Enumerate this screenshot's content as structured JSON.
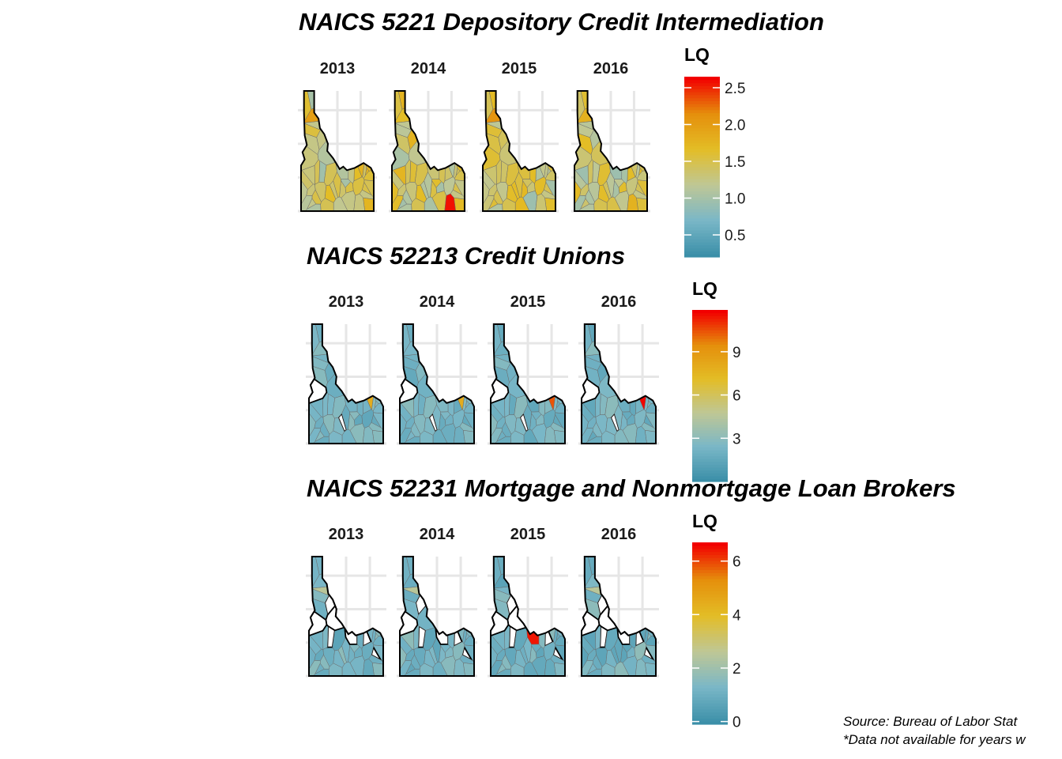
{
  "palette": {
    "stops": [
      "#3b8fa8",
      "#7ab7c7",
      "#bfc795",
      "#e3bd26",
      "#e58f0c",
      "#f20000"
    ],
    "state_outline": "#000000",
    "county_border": "#6b6b6b",
    "grid": "#e6e6e6",
    "no_data": "#ffffff"
  },
  "chart_data": [
    {
      "type": "heatmap",
      "subtype": "choropleth-map-small-multiples",
      "title": "NAICS 5221 Depository Credit Intermediation",
      "region": "Idaho counties",
      "panels": [
        "2013",
        "2014",
        "2015",
        "2016"
      ],
      "legend": {
        "title": "LQ",
        "ticks": [
          "0.5",
          "1.0",
          "1.5",
          "2.0",
          "2.5"
        ],
        "tick_values": [
          0.5,
          1.0,
          1.5,
          2.0,
          2.5
        ],
        "range": [
          0.2,
          2.65
        ],
        "placement": "right"
      },
      "panel_summary": [
        {
          "year": "2013",
          "max_lq": 2.0,
          "highlight": "north Idaho panhandle county ~2.0"
        },
        {
          "year": "2014",
          "max_lq": 2.6,
          "highlight": "southeast county ~2.6"
        },
        {
          "year": "2015",
          "max_lq": 2.1,
          "highlight": "north Idaho panhandle county ~2.1"
        },
        {
          "year": "2016",
          "max_lq": 1.8,
          "highlight": "statewide mostly 1.0-1.8"
        }
      ],
      "grid": true
    },
    {
      "type": "heatmap",
      "subtype": "choropleth-map-small-multiples",
      "title": "NAICS 52213 Credit Unions",
      "region": "Idaho counties",
      "panels": [
        "2013",
        "2014",
        "2015",
        "2016"
      ],
      "legend": {
        "title": "LQ",
        "ticks": [
          "3",
          "6",
          "9"
        ],
        "tick_values": [
          3,
          6,
          9
        ],
        "range": [
          0,
          11.9
        ],
        "placement": "right"
      },
      "panel_summary": [
        {
          "year": "2013",
          "max_lq": 8.0,
          "highlight": "eastern county ~8"
        },
        {
          "year": "2014",
          "max_lq": 8.0,
          "highlight": "eastern county ~8"
        },
        {
          "year": "2015",
          "max_lq": 10.5,
          "highlight": "eastern county ~10.5"
        },
        {
          "year": "2016",
          "max_lq": 11.8,
          "highlight": "eastern county ~11.8"
        }
      ],
      "grid": true
    },
    {
      "type": "heatmap",
      "subtype": "choropleth-map-small-multiples",
      "title": "NAICS 52231 Mortgage and Nonmortgage Loan Brokers",
      "region": "Idaho counties",
      "panels": [
        "2013",
        "2014",
        "2015",
        "2016"
      ],
      "legend": {
        "title": "LQ",
        "ticks": [
          "0",
          "2",
          "4",
          "6"
        ],
        "tick_values": [
          0,
          2,
          4,
          6
        ],
        "range": [
          -0.1,
          6.7
        ],
        "placement": "right"
      },
      "panel_summary": [
        {
          "year": "2013",
          "max_lq": 2.5,
          "highlight": "northern county ~2.5"
        },
        {
          "year": "2014",
          "max_lq": 2.5,
          "highlight": "northern county ~2.5"
        },
        {
          "year": "2015",
          "max_lq": 6.5,
          "highlight": "central county ~6.5"
        },
        {
          "year": "2016",
          "max_lq": 2.5,
          "highlight": "northern county ~2.5"
        }
      ],
      "grid": true
    }
  ],
  "caption": {
    "line1": "Source: Bureau of Labor Stat",
    "line2": "*Data not available for years w"
  }
}
